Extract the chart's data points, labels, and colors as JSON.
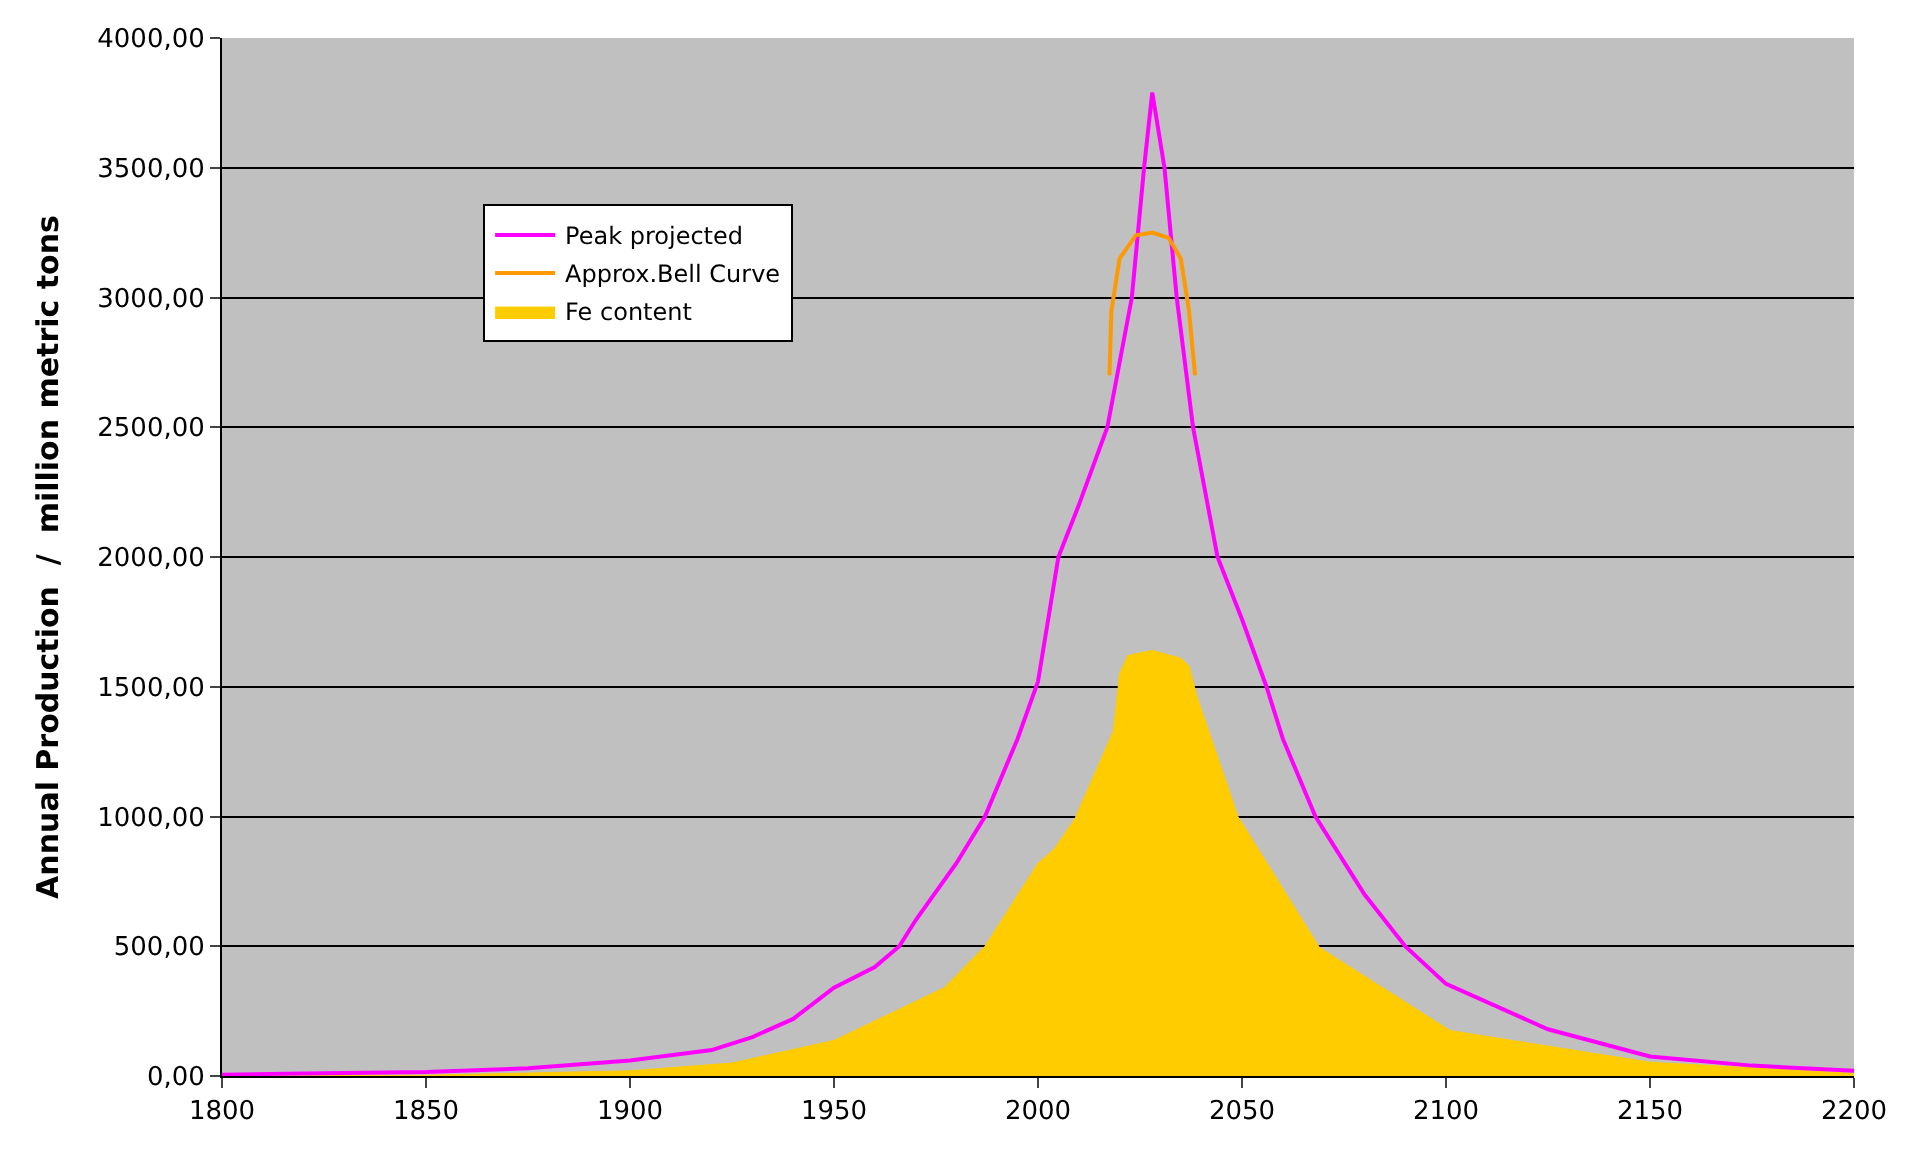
{
  "chart_data": {
    "type": "line",
    "ylabel": "Annual Production  /  million metric tons",
    "xlim": [
      1800,
      2200
    ],
    "xticks": [
      1800,
      1850,
      1900,
      1950,
      2000,
      2050,
      2100,
      2150,
      2200
    ],
    "ylim": [
      0,
      4000
    ],
    "yticks": [
      {
        "value": 0,
        "label": "0,00"
      },
      {
        "value": 500,
        "label": "500,00"
      },
      {
        "value": 1000,
        "label": "1000,00"
      },
      {
        "value": 1500,
        "label": "1500,00"
      },
      {
        "value": 2000,
        "label": "2000,00"
      },
      {
        "value": 2500,
        "label": "2500,00"
      },
      {
        "value": 3000,
        "label": "3000,00"
      },
      {
        "value": 3500,
        "label": "3500,00"
      },
      {
        "value": 4000,
        "label": "4000,00"
      }
    ],
    "grid": "y",
    "legend": "top left",
    "marker": "none",
    "line_style": "solid",
    "series": [
      {
        "name": "Peak projected",
        "color": "#ff00ff",
        "x": [
          1800,
          1820,
          1850,
          1875,
          1900,
          1920,
          1930,
          1940,
          1950,
          1960,
          1966,
          1970,
          1980,
          1987,
          1995,
          2000,
          2005,
          2010,
          2017,
          2023,
          2026,
          2028,
          2031,
          2034,
          2038,
          2044,
          2050,
          2056,
          2060,
          2068,
          2080,
          2090,
          2100,
          2125,
          2150,
          2175,
          2200
        ],
        "values": [
          5,
          10,
          15,
          30,
          60,
          100,
          150,
          220,
          340,
          420,
          500,
          600,
          820,
          1000,
          1300,
          1520,
          2000,
          2200,
          2500,
          3000,
          3500,
          3790,
          3500,
          3000,
          2500,
          2000,
          1760,
          1500,
          1300,
          1000,
          700,
          500,
          355,
          180,
          75,
          40,
          20
        ]
      },
      {
        "name": "Approx.Bell Curve",
        "color": "#ff9900",
        "x": [
          2017.5,
          2018,
          2020,
          2024,
          2028,
          2032,
          2035,
          2037,
          2038.5
        ],
        "values": [
          2700,
          2950,
          3150,
          3240,
          3250,
          3230,
          3150,
          2950,
          2700
        ]
      },
      {
        "name": "Fe content",
        "color": "#ffcc00",
        "type": "area",
        "x": [
          1800,
          1850,
          1900,
          1925,
          1950,
          1977,
          1987,
          2000,
          2004,
          2009,
          2018.5,
          2020,
          2022,
          2028,
          2035,
          2037,
          2039,
          2049,
          2069,
          2101,
          2150,
          2200
        ],
        "values": [
          0,
          3,
          20,
          50,
          137,
          340,
          500,
          820,
          875,
          990,
          1330,
          1550,
          1620,
          1640,
          1610,
          1580,
          1460,
          1000,
          495,
          175,
          53,
          10
        ]
      }
    ]
  }
}
